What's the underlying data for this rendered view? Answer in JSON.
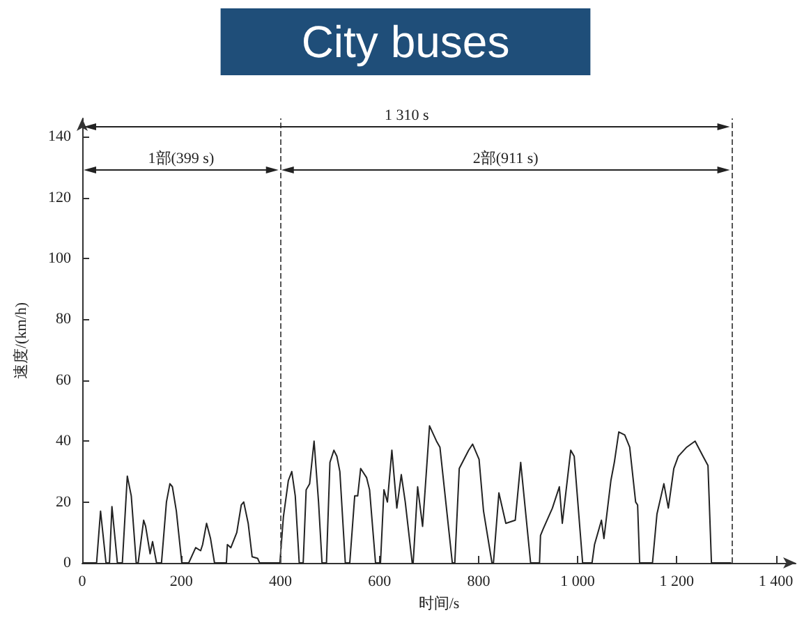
{
  "chart_data": {
    "type": "line",
    "title": "City buses",
    "xlabel": "时间/s",
    "ylabel": "速度/(km/h)",
    "xlim": [
      0,
      1440
    ],
    "xticks": [
      0,
      200,
      400,
      600,
      800,
      {
        "value": 1000,
        "label": "1 000"
      },
      {
        "value": 1200,
        "label": "1 200"
      },
      {
        "value": 1400,
        "label": "1 400"
      }
    ],
    "ylim": [
      0,
      146
    ],
    "yticks": [
      0,
      20,
      40,
      60,
      80,
      100,
      120,
      140
    ],
    "grid": false,
    "marker": "none",
    "line_style": "solid",
    "ref_lines": [
      {
        "axis": "x",
        "value": 399,
        "label": null,
        "color": "#555555",
        "line_style": "dashed"
      },
      {
        "axis": "x",
        "value": 1310,
        "label": null,
        "color": "#555555",
        "line_style": "dashed"
      }
    ],
    "annotations": [
      "1 310 s",
      "1部(399 s)",
      "2部(911 s)"
    ],
    "series": [
      {
        "color": "#222222",
        "x": [
          0,
          29,
          37,
          48,
          55,
          60,
          71,
          81,
          91,
          99,
          109,
          113,
          124,
          128,
          137,
          142,
          150,
          160,
          170,
          177,
          182,
          190,
          201,
          215,
          229,
          239,
          243,
          251,
          259,
          267,
          291,
          293,
          300,
          312,
          321,
          326,
          335,
          343,
          354,
          358,
          399,
          400,
          406,
          416,
          423,
          430,
          438,
          446,
          452,
          459,
          468,
          477,
          484,
          493,
          500,
          508,
          514,
          520,
          531,
          540,
          550,
          556,
          562,
          574,
          580,
          592,
          602,
          609,
          616,
          625,
          635,
          644,
          652,
          666,
          668,
          677,
          687,
          701,
          715,
          722,
          747,
          752,
          761,
          780,
          788,
          801,
          810,
          827,
          830,
          841,
          855,
          874,
          885,
          905,
          923,
          925,
          930,
          949,
          963,
          969,
          986,
          993,
          1010,
          1029,
          1034,
          1048,
          1053,
          1067,
          1074,
          1083,
          1095,
          1105,
          1117,
          1121,
          1125,
          1151,
          1160,
          1174,
          1183,
          1194,
          1203,
          1220,
          1237,
          1253,
          1263,
          1270,
          1310
        ],
        "values": [
          0,
          0,
          17,
          0,
          0,
          18.5,
          0,
          0,
          28.5,
          22,
          0,
          0,
          14,
          12,
          3,
          7,
          0,
          0,
          20,
          26,
          25,
          17,
          0,
          0,
          5,
          4,
          6,
          13,
          8,
          0,
          0,
          6,
          5,
          10,
          19,
          20,
          13,
          2,
          1.5,
          0,
          0,
          0,
          15,
          27,
          30,
          22,
          0,
          0,
          24,
          26,
          40,
          20,
          0,
          0,
          33,
          37,
          35,
          30,
          0,
          0,
          22,
          22,
          31,
          28,
          24,
          0,
          0,
          24,
          20,
          37,
          18,
          29,
          20,
          0,
          0,
          25,
          12,
          45,
          40,
          38,
          0,
          0,
          31,
          37,
          39,
          34,
          17,
          0,
          0,
          23,
          13,
          14,
          33,
          0,
          0,
          9,
          11,
          18,
          25,
          13,
          37,
          35,
          0,
          0,
          6,
          14,
          8,
          27,
          33,
          43,
          42,
          38,
          20,
          19,
          0,
          0,
          16,
          26,
          18,
          31,
          35,
          38,
          40,
          35,
          32,
          0,
          0
        ]
      }
    ]
  }
}
